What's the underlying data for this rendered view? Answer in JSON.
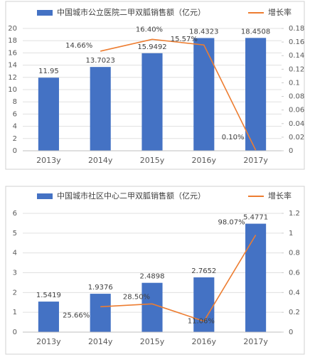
{
  "chart_data": [
    {
      "type": "bar",
      "categories": [
        "2013y",
        "2014y",
        "2015y",
        "2016y",
        "2017y"
      ],
      "series": [
        {
          "name": "中国城市公立医院二甲双胍销售额（亿元）",
          "color": "#4472c4",
          "values": [
            11.95,
            13.7023,
            15.9492,
            18.4323,
            18.4508
          ]
        },
        {
          "name": "增长率",
          "type": "line",
          "axis": "y2",
          "color": "#ed7d31",
          "values": [
            null,
            0.1466,
            0.164,
            0.1557,
            0.001
          ],
          "value_labels": [
            null,
            "14.66%",
            "16.40%",
            "15.57%",
            "0.10%"
          ]
        }
      ],
      "ylim": [
        0,
        20
      ],
      "yticks": [
        0,
        2,
        4,
        6,
        8,
        10,
        12,
        14,
        16,
        18,
        20
      ],
      "y2lim": [
        0,
        0.18
      ],
      "y2ticks": [
        0,
        0.02,
        0.04,
        0.06,
        0.08,
        0.1,
        0.12,
        0.14,
        0.16,
        0.18
      ]
    },
    {
      "type": "bar",
      "categories": [
        "2013y",
        "2014y",
        "2015y",
        "2016y",
        "2017y"
      ],
      "series": [
        {
          "name": "中国城市社区中心二甲双胍销售额（亿元）",
          "color": "#4472c4",
          "values": [
            1.5419,
            1.9376,
            2.4898,
            2.7652,
            5.4771
          ]
        },
        {
          "name": "增长率",
          "type": "line",
          "axis": "y2",
          "color": "#ed7d31",
          "values": [
            null,
            0.2566,
            0.285,
            0.1106,
            0.9807
          ],
          "value_labels": [
            null,
            "25.66%",
            "28.50%",
            "11.06%",
            "98.07%"
          ]
        }
      ],
      "ylim": [
        0,
        6
      ],
      "yticks": [
        0,
        1,
        2,
        3,
        4,
        5,
        6
      ],
      "y2lim": [
        0,
        1.2
      ],
      "y2ticks": [
        0,
        0.2,
        0.4,
        0.6,
        0.8,
        1,
        1.2
      ]
    }
  ]
}
